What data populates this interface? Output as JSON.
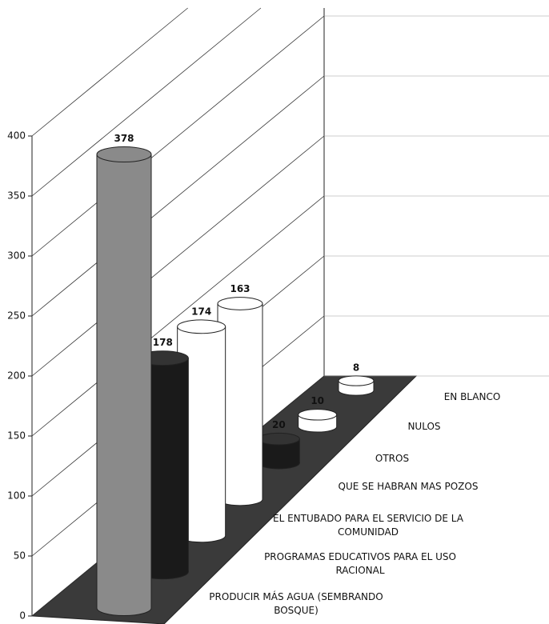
{
  "chart_data": {
    "type": "bar3d",
    "categories": [
      "PRODUCIR MÁS AGUA (SEMBRANDO BOSQUE)",
      "PROGRAMAS EDUCATIVOS PARA EL USO RACIONAL",
      "EL ENTUBADO PARA EL SERVICIO DE LA COMUNIDAD",
      "QUE SE HABRAN MAS POZOS",
      "OTROS",
      "NULOS",
      "EN BLANCO"
    ],
    "values": [
      378,
      178,
      174,
      163,
      20,
      10,
      8
    ],
    "colors": [
      "#8a8a8a",
      "#1a1a1a",
      "#ffffff",
      "#ffffff",
      "#1a1a1a",
      "#ffffff",
      "#ffffff"
    ],
    "ylim": [
      0,
      400
    ],
    "yticks": [
      0,
      50,
      100,
      150,
      200,
      250,
      300,
      350,
      400
    ],
    "grid": true
  }
}
